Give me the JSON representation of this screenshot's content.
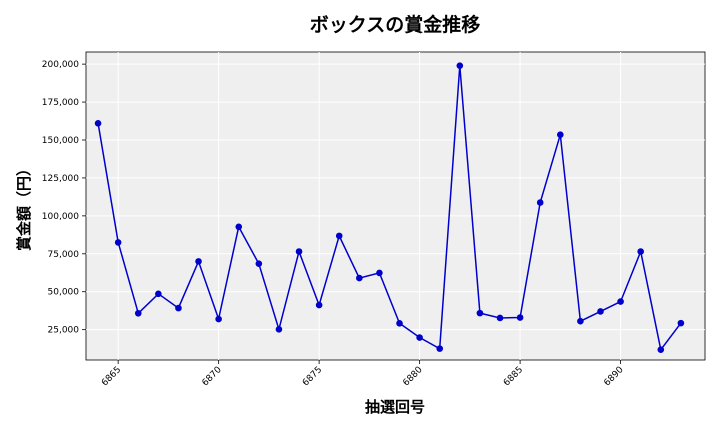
{
  "chart_data": {
    "type": "line",
    "title": "ボックスの賞金推移",
    "xlabel": "抽選回号",
    "ylabel": "賞金額（円）",
    "x": [
      6864,
      6865,
      6866,
      6867,
      6868,
      6869,
      6870,
      6871,
      6872,
      6873,
      6874,
      6875,
      6876,
      6877,
      6878,
      6879,
      6880,
      6881,
      6882,
      6883,
      6884,
      6885,
      6886,
      6887,
      6888,
      6889,
      6890,
      6891,
      6892,
      6893
    ],
    "values": [
      161000,
      82500,
      35800,
      48600,
      39200,
      70000,
      32000,
      92800,
      68500,
      25200,
      76500,
      41200,
      86800,
      59000,
      62400,
      29200,
      19800,
      12500,
      199000,
      35900,
      32700,
      33000,
      108800,
      153500,
      30600,
      37000,
      43500,
      76500,
      11800,
      29300
    ],
    "xlim": [
      6863.4,
      6894.2
    ],
    "ylim": [
      5000,
      208000
    ],
    "xticks": [
      6865,
      6870,
      6875,
      6880,
      6885,
      6890
    ],
    "yticks": [
      25000,
      50000,
      75000,
      100000,
      125000,
      150000,
      175000,
      200000
    ],
    "xtick_labels": [
      "6865",
      "6870",
      "6875",
      "6880",
      "6885",
      "6890"
    ],
    "ytick_labels": [
      "25,000",
      "50,000",
      "75,000",
      "100,000",
      "125,000",
      "150,000",
      "175,000",
      "200,000"
    ],
    "grid": true,
    "line_color": "#0000cd",
    "background_color": "#efefef"
  }
}
